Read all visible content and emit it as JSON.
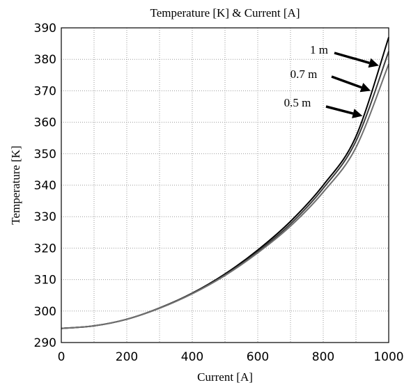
{
  "chart_data": {
    "type": "line",
    "title": "Temperature [K] & Current [A]",
    "xlabel": "Current [A]",
    "ylabel": "Temperature [K]",
    "xlim": [
      0,
      1000
    ],
    "ylim": [
      290,
      390
    ],
    "xticks": [
      0,
      200,
      400,
      600,
      800,
      1000
    ],
    "yticks": [
      290,
      300,
      310,
      320,
      330,
      340,
      350,
      360,
      370,
      380,
      390
    ],
    "grid": true,
    "colors": {
      "line": "#000000",
      "line_mid": "#3c3c3c",
      "line_light": "#707070"
    },
    "x": [
      0,
      100,
      200,
      300,
      400,
      500,
      600,
      700,
      800,
      900,
      1000
    ],
    "series": [
      {
        "values": [
          294.5,
          295.3,
          297.4,
          301.0,
          305.7,
          311.8,
          319.4,
          328.5,
          340.0,
          355.5,
          387.0
        ]
      },
      {
        "values": [
          294.5,
          295.3,
          297.4,
          300.9,
          305.6,
          311.5,
          318.9,
          327.7,
          339.0,
          354.0,
          382.5
        ]
      },
      {
        "values": [
          294.5,
          295.3,
          297.4,
          300.9,
          305.5,
          311.3,
          318.5,
          327.0,
          337.8,
          352.0,
          378.5
        ]
      }
    ],
    "annotations": [
      {
        "text": "1 m",
        "target": [
          970,
          378
        ]
      },
      {
        "text": "0.7 m",
        "target": [
          945,
          370
        ]
      },
      {
        "text": "0.5 m",
        "target": [
          920,
          362
        ]
      }
    ]
  }
}
